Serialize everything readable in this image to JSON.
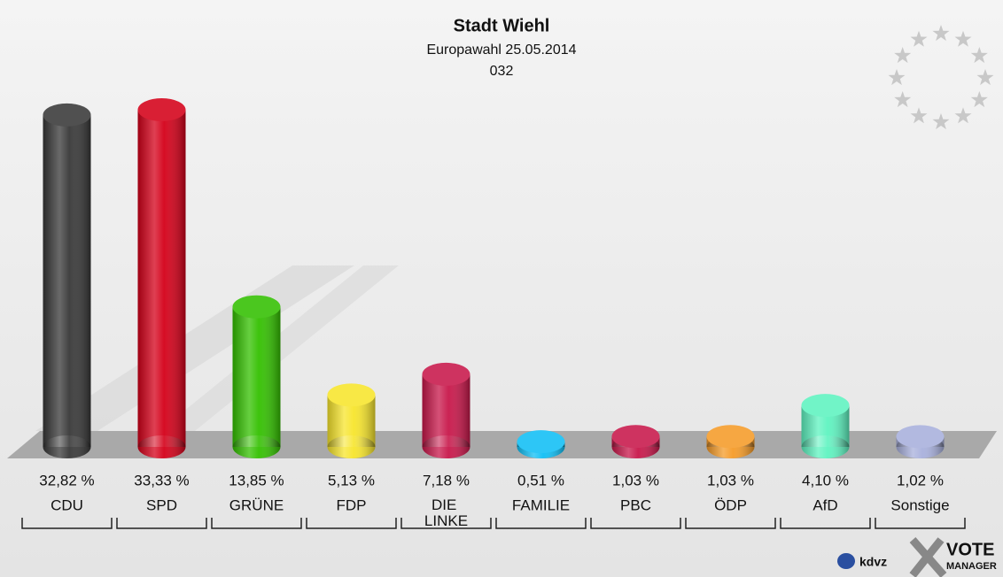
{
  "chart_data": {
    "type": "bar",
    "title": "Stadt Wiehl",
    "subtitle": "Europawahl 25.05.2014",
    "subtitle2": "032",
    "categories": [
      "CDU",
      "SPD",
      "GRÜNE",
      "FDP",
      "DIE LINKE",
      "FAMILIE",
      "PBC",
      "ÖDP",
      "AfD",
      "Sonstige"
    ],
    "values": [
      32.82,
      33.33,
      13.85,
      5.13,
      7.18,
      0.51,
      1.03,
      1.03,
      4.1,
      1.02
    ],
    "value_labels": [
      "32,82 %",
      "33,33 %",
      "13,85 %",
      "5,13 %",
      "7,18 %",
      "0,51 %",
      "1,03 %",
      "1,03 %",
      "4,10 %",
      "1,02 %"
    ],
    "colors": [
      "#383838",
      "#d40019",
      "#33c000",
      "#f7e52c",
      "#c8174a",
      "#10bff5",
      "#c8174a",
      "#f59b28",
      "#5ef3c0",
      "#a8b0dc"
    ],
    "logo": {
      "left": "kdvz",
      "right": "VOTE",
      "right_sub": "MANAGER"
    }
  }
}
